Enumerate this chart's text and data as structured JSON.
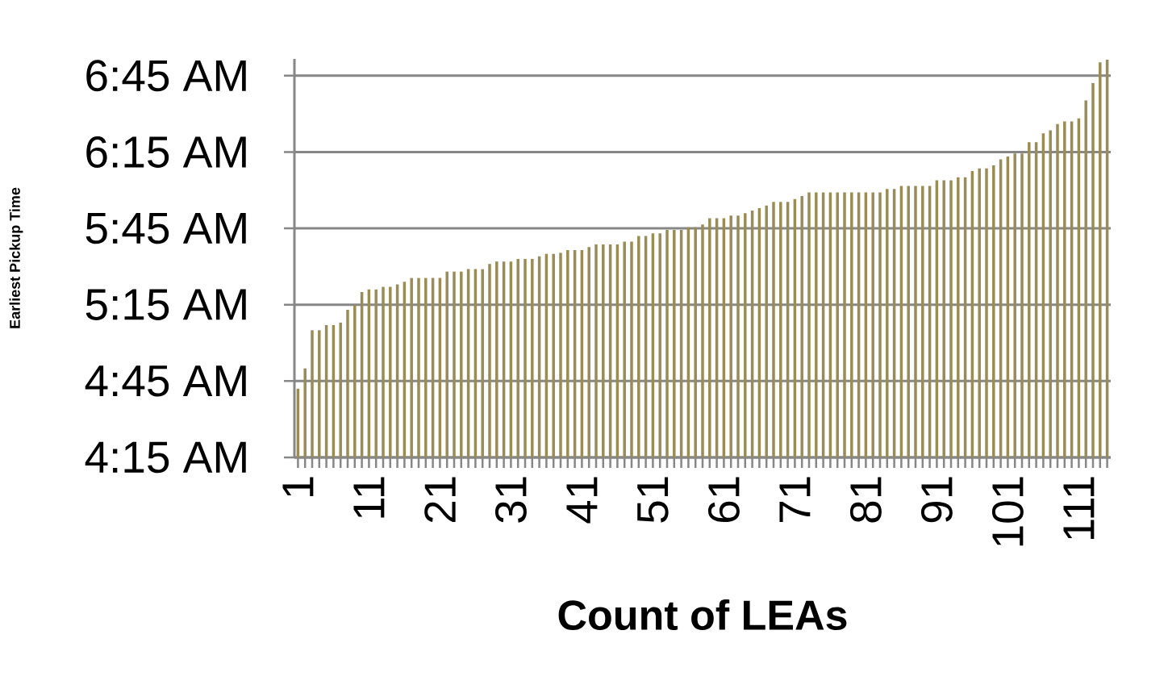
{
  "chart_data": {
    "type": "bar",
    "xlabel": "Count of LEAs",
    "ylabel": "Earliest Pickup Time",
    "categories": [
      "1",
      null,
      null,
      null,
      null,
      null,
      null,
      null,
      null,
      null,
      "11",
      null,
      null,
      null,
      null,
      null,
      null,
      null,
      null,
      null,
      "21",
      null,
      null,
      null,
      null,
      null,
      null,
      null,
      null,
      null,
      "31",
      null,
      null,
      null,
      null,
      null,
      null,
      null,
      null,
      null,
      "41",
      null,
      null,
      null,
      null,
      null,
      null,
      null,
      null,
      null,
      "51",
      null,
      null,
      null,
      null,
      null,
      null,
      null,
      null,
      null,
      "61",
      null,
      null,
      null,
      null,
      null,
      null,
      null,
      null,
      null,
      "71",
      null,
      null,
      null,
      null,
      null,
      null,
      null,
      null,
      null,
      "81",
      null,
      null,
      null,
      null,
      null,
      null,
      null,
      null,
      null,
      "91",
      null,
      null,
      null,
      null,
      null,
      null,
      null,
      null,
      null,
      "101",
      null,
      null,
      null,
      null,
      null,
      null,
      null,
      null,
      null,
      "111",
      null,
      null,
      null,
      null
    ],
    "values": [
      4.7,
      4.833,
      5.083,
      5.083,
      5.117,
      5.117,
      5.133,
      5.217,
      5.25,
      5.333,
      5.35,
      5.35,
      5.367,
      5.367,
      5.383,
      5.4,
      5.425,
      5.425,
      5.425,
      5.425,
      5.425,
      5.467,
      5.467,
      5.467,
      5.483,
      5.483,
      5.483,
      5.517,
      5.533,
      5.533,
      5.533,
      5.55,
      5.55,
      5.55,
      5.567,
      5.583,
      5.583,
      5.59,
      5.608,
      5.608,
      5.608,
      5.628,
      5.645,
      5.645,
      5.645,
      5.645,
      5.663,
      5.663,
      5.7,
      5.7,
      5.717,
      5.717,
      5.74,
      5.74,
      5.74,
      5.757,
      5.757,
      5.775,
      5.817,
      5.817,
      5.817,
      5.833,
      5.833,
      5.85,
      5.867,
      5.883,
      5.9,
      5.923,
      5.923,
      5.923,
      5.942,
      5.962,
      5.985,
      5.985,
      5.985,
      5.985,
      5.985,
      5.985,
      5.985,
      5.985,
      5.985,
      5.985,
      5.985,
      6.008,
      6.008,
      6.028,
      6.028,
      6.028,
      6.028,
      6.028,
      6.065,
      6.065,
      6.065,
      6.085,
      6.085,
      6.125,
      6.143,
      6.143,
      6.163,
      6.202,
      6.22,
      6.24,
      6.24,
      6.315,
      6.315,
      6.373,
      6.393,
      6.433,
      6.45,
      6.45,
      6.47,
      6.588,
      6.702,
      6.837,
      6.855
    ],
    "color": "#998c55",
    "ylim": [
      4.25,
      6.86
    ],
    "yticks": [
      {
        "value": 4.25,
        "label": "4:15 AM"
      },
      {
        "value": 4.75,
        "label": "4:45 AM"
      },
      {
        "value": 5.25,
        "label": "5:15 AM"
      },
      {
        "value": 5.75,
        "label": "5:45 AM"
      },
      {
        "value": 6.25,
        "label": "6:15 AM"
      },
      {
        "value": 6.75,
        "label": "6:45 AM"
      }
    ],
    "grid": "y"
  }
}
